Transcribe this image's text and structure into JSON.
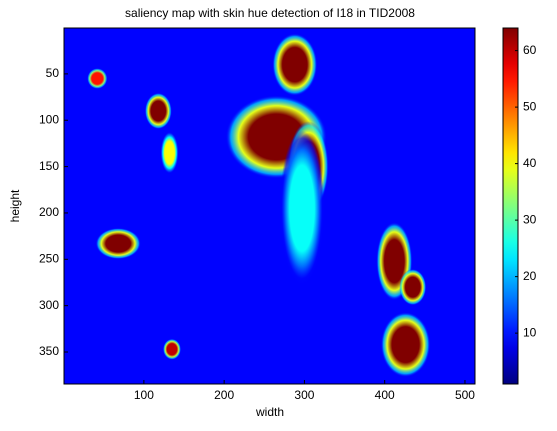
{
  "chart_data": {
    "type": "image",
    "title": "saliency map with skin hue detection of I18 in TID2008",
    "xlabel": "width",
    "ylabel": "height",
    "xlim": [
      0.5,
      512.5
    ],
    "ylim": [
      0.5,
      384.5
    ],
    "xticks": [
      100,
      200,
      300,
      400,
      500
    ],
    "yticks": [
      50,
      100,
      150,
      200,
      250,
      300,
      350
    ],
    "clim": [
      1,
      64
    ],
    "cticks": [
      10,
      20,
      30,
      40,
      50,
      60
    ],
    "colormap": "jet",
    "background_value": 9,
    "blobs": [
      {
        "x": 42,
        "y": 55,
        "rx": 9,
        "ry": 8,
        "value": 55
      },
      {
        "x": 118,
        "y": 90,
        "rx": 12,
        "ry": 14,
        "value": 64
      },
      {
        "x": 132,
        "y": 135,
        "rx": 8,
        "ry": 16,
        "value": 40
      },
      {
        "x": 288,
        "y": 40,
        "rx": 20,
        "ry": 24,
        "value": 64
      },
      {
        "x": 265,
        "y": 118,
        "rx": 45,
        "ry": 32,
        "value": 64
      },
      {
        "x": 305,
        "y": 150,
        "rx": 18,
        "ry": 35,
        "value": 64
      },
      {
        "x": 297,
        "y": 195,
        "rx": 20,
        "ry": 60,
        "value": 25
      },
      {
        "x": 68,
        "y": 233,
        "rx": 20,
        "ry": 12,
        "value": 64
      },
      {
        "x": 135,
        "y": 347,
        "rx": 8,
        "ry": 8,
        "value": 60
      },
      {
        "x": 412,
        "y": 252,
        "rx": 16,
        "ry": 30,
        "value": 64
      },
      {
        "x": 435,
        "y": 280,
        "rx": 12,
        "ry": 14,
        "value": 64
      },
      {
        "x": 426,
        "y": 342,
        "rx": 22,
        "ry": 25,
        "value": 64
      }
    ]
  }
}
